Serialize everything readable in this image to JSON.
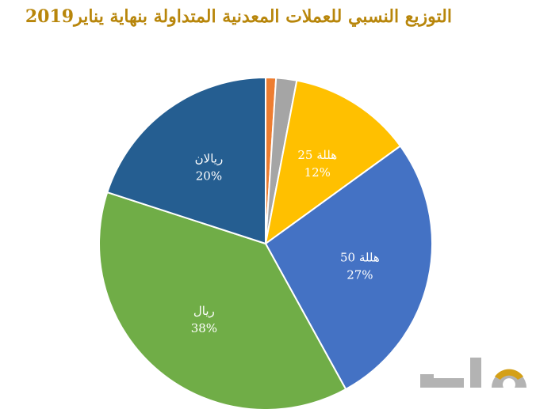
{
  "chart_data": {
    "type": "pie",
    "title": "التوزيع النسبي للعملات المعدنية المتداولة بنهاية يناير2019",
    "slices": [
      {
        "name": "",
        "value": 1,
        "label_pct": "",
        "color": "#ed7d31"
      },
      {
        "name": "",
        "value": 2,
        "label_pct": "",
        "color": "#a5a5a5"
      },
      {
        "name": "25 هللة",
        "value": 12,
        "label_pct": "12%",
        "color": "#ffc000"
      },
      {
        "name": "50 هللة",
        "value": 27,
        "label_pct": "27%",
        "color": "#4472c4"
      },
      {
        "name": "ريال",
        "value": 38,
        "label_pct": "38%",
        "color": "#70ad47"
      },
      {
        "name": "ريالان",
        "value": 20,
        "label_pct": "20%",
        "color": "#255e91"
      }
    ]
  },
  "logo": {
    "name": "mal-logo",
    "colors": [
      "#b0b0b0",
      "#d4a017"
    ]
  }
}
